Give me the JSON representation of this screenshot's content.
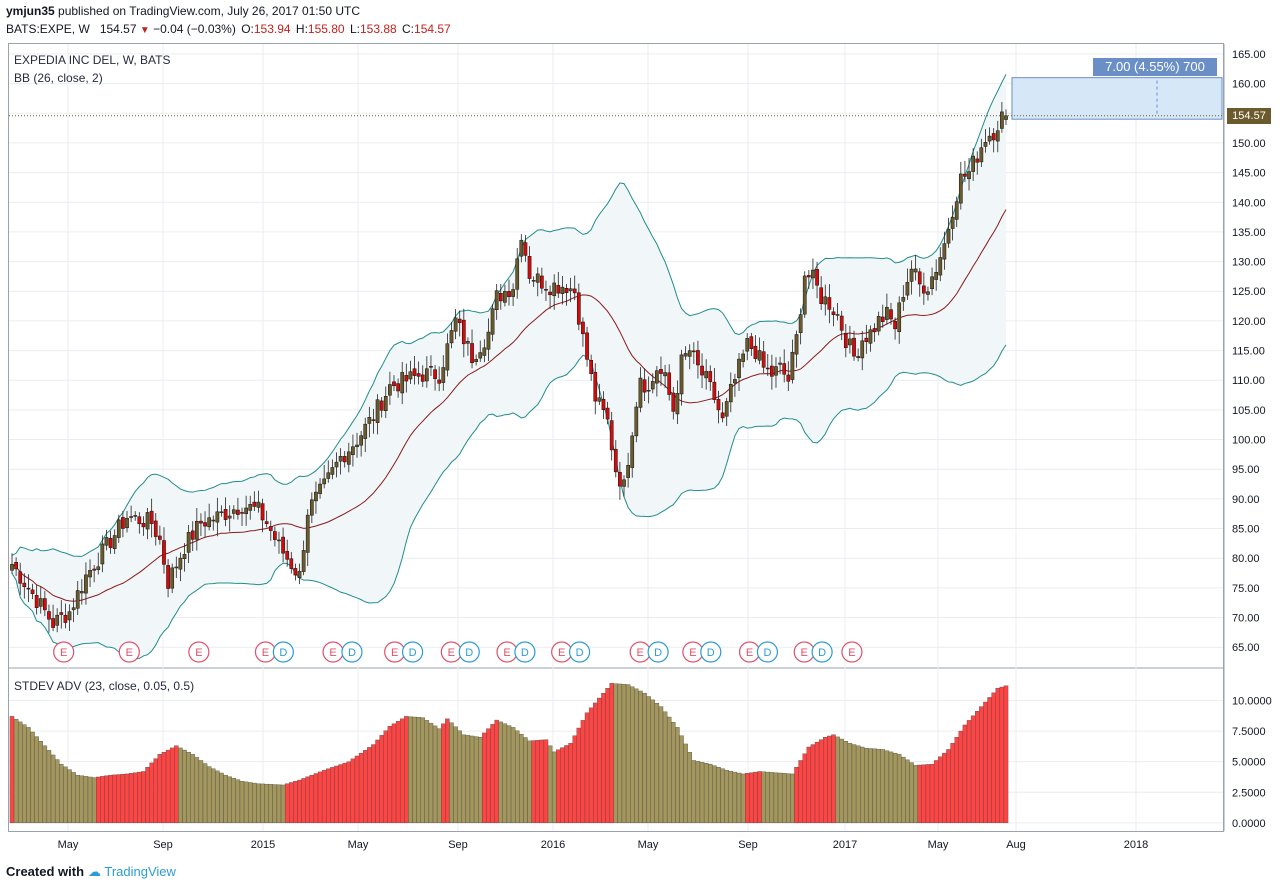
{
  "header": {
    "user": "ymjun35",
    "published": " published on TradingView.com, July 26, 2017 01:50 UTC",
    "symbol": "BATS:EXPE, W",
    "last": "154.57",
    "change": "−0.04 (−0.03%)",
    "o_label": "O:",
    "o": "153.94",
    "h_label": "H:",
    "h": "155.80",
    "l_label": "L:",
    "l": "153.88",
    "c_label": "C:",
    "c": "154.57"
  },
  "legend": {
    "main_title": "EXPEDIA INC DEL, W, BATS",
    "bb": "BB (26, close, 2)",
    "stdev": "STDEV ADV (23, close, 0.05, 0.5)"
  },
  "price_tag": "154.57",
  "measure": {
    "label": "7.00 (4.55%) 700"
  },
  "footer": {
    "created": "Created with",
    "brand": "TradingView"
  },
  "colors": {
    "up": "#6b5a2c",
    "down": "#d60a0a",
    "bb_band": "#218c8d",
    "bb_basis": "#8b1a1a",
    "bb_fill": "#f1f7f8",
    "hist_up": "#a3975d",
    "hist_down": "#ff4444",
    "measure": "#d6e8f8"
  },
  "chart_data": {
    "type": "candlestick",
    "price_axis": {
      "min": 62,
      "max": 166,
      "ticks": [
        65,
        70,
        75,
        80,
        85,
        90,
        95,
        100,
        105,
        110,
        115,
        120,
        125,
        130,
        135,
        140,
        145,
        150,
        155,
        160,
        165
      ],
      "tick_labels": [
        "65.00",
        "70.00",
        "75.00",
        "80.00",
        "85.00",
        "90.00",
        "95.00",
        "100.00",
        "105.00",
        "110.00",
        "115.00",
        "120.00",
        "125.00",
        "130.00",
        "135.00",
        "140.00",
        "145.00",
        "150.00",
        "155.00",
        "160.00",
        "165.00"
      ]
    },
    "stdev_axis": {
      "min": -0.5,
      "max": 12.0,
      "ticks": [
        0,
        2.5,
        5,
        7.5,
        10
      ],
      "tick_labels": [
        "0.0000",
        "2.5000",
        "5.0000",
        "7.5000",
        "10.0000"
      ]
    },
    "time_labels": [
      "May",
      "Sep",
      "2015",
      "May",
      "Sep",
      "2016",
      "May",
      "Sep",
      "2017",
      "May",
      "Aug",
      "2018"
    ],
    "price_waypoints": [
      [
        0,
        79
      ],
      [
        6,
        73
      ],
      [
        10,
        69
      ],
      [
        14,
        71
      ],
      [
        18,
        77
      ],
      [
        24,
        83
      ],
      [
        28,
        87
      ],
      [
        34,
        86
      ],
      [
        36,
        83
      ],
      [
        38,
        76
      ],
      [
        42,
        82
      ],
      [
        46,
        86
      ],
      [
        50,
        87
      ],
      [
        56,
        89
      ],
      [
        60,
        88
      ],
      [
        62,
        86
      ],
      [
        65,
        82
      ],
      [
        68,
        79
      ],
      [
        70,
        77
      ],
      [
        72,
        88
      ],
      [
        76,
        92
      ],
      [
        80,
        97
      ],
      [
        84,
        100
      ],
      [
        88,
        104
      ],
      [
        92,
        109
      ],
      [
        96,
        110
      ],
      [
        100,
        111
      ],
      [
        104,
        111
      ],
      [
        108,
        120
      ],
      [
        112,
        114
      ],
      [
        116,
        118
      ],
      [
        118,
        124
      ],
      [
        122,
        126
      ],
      [
        124,
        135
      ],
      [
        126,
        128
      ],
      [
        128,
        127
      ],
      [
        131,
        126
      ],
      [
        135,
        126
      ],
      [
        137,
        125
      ],
      [
        139,
        117
      ],
      [
        142,
        107
      ],
      [
        145,
        103
      ],
      [
        147,
        95
      ],
      [
        149,
        92
      ],
      [
        151,
        102
      ],
      [
        153,
        111
      ],
      [
        155,
        108
      ],
      [
        157,
        112
      ],
      [
        159,
        110
      ],
      [
        161,
        105
      ],
      [
        163,
        113
      ],
      [
        165,
        115
      ],
      [
        167,
        112
      ],
      [
        169,
        110
      ],
      [
        171,
        107
      ],
      [
        173,
        103
      ],
      [
        175,
        108
      ],
      [
        177,
        112
      ],
      [
        179,
        116
      ],
      [
        181,
        115
      ],
      [
        183,
        112
      ],
      [
        185,
        111
      ],
      [
        187,
        112
      ],
      [
        189,
        110
      ],
      [
        191,
        117
      ],
      [
        193,
        128
      ],
      [
        195,
        127
      ],
      [
        197,
        124
      ],
      [
        199,
        123
      ],
      [
        201,
        121
      ],
      [
        203,
        117
      ],
      [
        205,
        114
      ],
      [
        207,
        117
      ],
      [
        209,
        118
      ],
      [
        211,
        120
      ],
      [
        213,
        121
      ],
      [
        215,
        119
      ],
      [
        217,
        125
      ],
      [
        219,
        129
      ],
      [
        221,
        126
      ],
      [
        223,
        126
      ],
      [
        225,
        129
      ],
      [
        227,
        133
      ],
      [
        229,
        139
      ],
      [
        231,
        144
      ],
      [
        233,
        145
      ],
      [
        235,
        148
      ],
      [
        237,
        151
      ],
      [
        239,
        152
      ],
      [
        241,
        154.5
      ],
      [
        242,
        154.57
      ]
    ],
    "earnings_markers": [
      "E",
      "E",
      "E",
      "E",
      "D",
      "E",
      "D",
      "E",
      "D",
      "E",
      "D",
      "E",
      "D",
      "E",
      "D",
      "E",
      "D",
      "E",
      "D",
      "E",
      "D",
      "E",
      "D",
      "E"
    ],
    "event_positions": [
      0.052,
      0.118,
      0.188,
      0.255,
      0.273,
      0.323,
      0.342,
      0.385,
      0.403,
      0.442,
      0.46,
      0.498,
      0.516,
      0.553,
      0.571,
      0.632,
      0.65,
      0.685,
      0.703,
      0.742,
      0.76,
      0.797,
      0.815,
      0.845
    ],
    "stdev_waypoints": [
      [
        0,
        8.7
      ],
      [
        4,
        7.8
      ],
      [
        8,
        6.3
      ],
      [
        12,
        4.8
      ],
      [
        16,
        3.9
      ],
      [
        20,
        3.7
      ],
      [
        24,
        3.9
      ],
      [
        28,
        4.0
      ],
      [
        32,
        4.2
      ],
      [
        36,
        5.6
      ],
      [
        40,
        6.3
      ],
      [
        44,
        5.6
      ],
      [
        48,
        4.6
      ],
      [
        52,
        3.9
      ],
      [
        56,
        3.4
      ],
      [
        60,
        3.2
      ],
      [
        66,
        3.1
      ],
      [
        70,
        3.5
      ],
      [
        76,
        4.3
      ],
      [
        82,
        5.0
      ],
      [
        88,
        6.4
      ],
      [
        92,
        7.9
      ],
      [
        96,
        8.7
      ],
      [
        100,
        8.6
      ],
      [
        104,
        7.7
      ],
      [
        106,
        8.5
      ],
      [
        110,
        7.2
      ],
      [
        114,
        7.0
      ],
      [
        118,
        8.4
      ],
      [
        122,
        7.8
      ],
      [
        126,
        6.7
      ],
      [
        130,
        6.8
      ],
      [
        132,
        5.8
      ],
      [
        136,
        6.5
      ],
      [
        140,
        9.0
      ],
      [
        144,
        10.6
      ],
      [
        146,
        11.4
      ],
      [
        150,
        11.3
      ],
      [
        154,
        10.6
      ],
      [
        158,
        9.5
      ],
      [
        162,
        7.8
      ],
      [
        166,
        5.1
      ],
      [
        170,
        4.8
      ],
      [
        174,
        4.3
      ],
      [
        178,
        4.0
      ],
      [
        182,
        4.2
      ],
      [
        186,
        4.1
      ],
      [
        190,
        4.0
      ],
      [
        194,
        6.2
      ],
      [
        198,
        7.0
      ],
      [
        200,
        7.2
      ],
      [
        204,
        6.5
      ],
      [
        208,
        6.1
      ],
      [
        212,
        6.0
      ],
      [
        216,
        5.6
      ],
      [
        220,
        4.7
      ],
      [
        224,
        4.8
      ],
      [
        228,
        6.0
      ],
      [
        232,
        8.0
      ],
      [
        236,
        9.5
      ],
      [
        240,
        11.0
      ],
      [
        242,
        11.2
      ]
    ]
  }
}
